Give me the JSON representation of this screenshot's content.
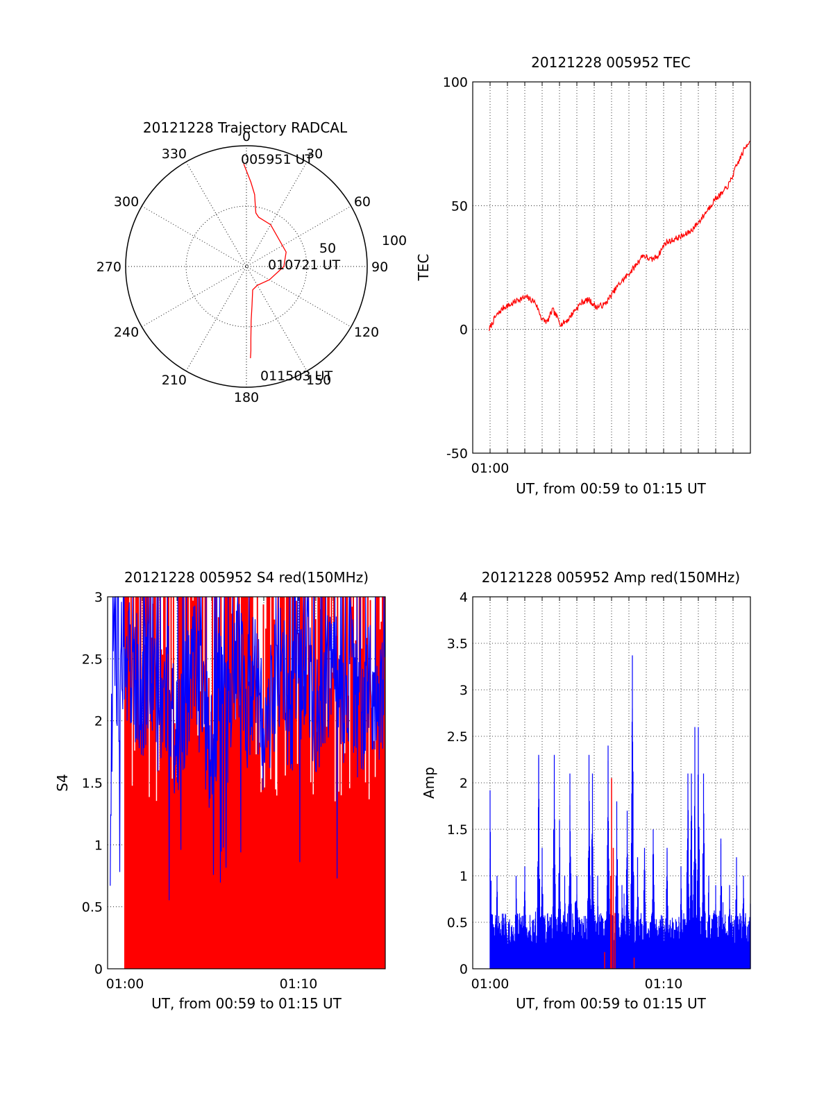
{
  "colors": {
    "red": "#ff0000",
    "blue": "#0000ff",
    "axis": "#000000",
    "grid": "#000000"
  },
  "chart_data": [
    {
      "id": "trajectory",
      "type": "polar",
      "title": "20121228 Trajectory RADCAL",
      "angle_labels": [
        "0",
        "30",
        "60",
        "90",
        "120",
        "150",
        "180",
        "210",
        "240",
        "270",
        "300",
        "330"
      ],
      "radius_labels": [
        "50",
        "100"
      ],
      "rlim": [
        0,
        100
      ],
      "grid": true,
      "series": [
        {
          "color": "#ff0000",
          "points": [
            [
              -1.5,
              85
            ],
            [
              3,
              70
            ],
            [
              6.5,
              60
            ],
            [
              8.5,
              50
            ],
            [
              10,
              45
            ],
            [
              14,
              42
            ],
            [
              30,
              40
            ],
            [
              70,
              35
            ],
            [
              90,
              31
            ],
            [
              120,
              22
            ],
            [
              150,
              18
            ],
            [
              165,
              20
            ],
            [
              172,
              33
            ],
            [
              175,
              45
            ],
            [
              176.5,
              60
            ],
            [
              177,
              70
            ],
            [
              177.5,
              76
            ]
          ]
        }
      ],
      "annotations": [
        "005951 UT",
        "010721 UT",
        "011503 UT"
      ]
    },
    {
      "id": "tec",
      "type": "line",
      "title": "20121228 005952 TEC",
      "xlabel": "UT, from 00:59 to 01:15 UT",
      "ylabel": "TEC",
      "xlim": [
        0,
        16
      ],
      "ylim": [
        -50,
        100
      ],
      "yticks": [
        "-50",
        "0",
        "50",
        "100"
      ],
      "xticks": [
        {
          "x": 1,
          "label": "01:00"
        }
      ],
      "grid": true,
      "series": [
        {
          "color": "#ff0000",
          "x": [
            0.95,
            1.3,
            1.8,
            2.2,
            2.6,
            3.1,
            3.6,
            4.0,
            4.3,
            4.6,
            5.1,
            5.5,
            5.9,
            6.3,
            6.7,
            7.1,
            7.6,
            8.0,
            8.4,
            8.8,
            9.3,
            9.8,
            10.3,
            10.7,
            11.1,
            11.5,
            11.8,
            12.2,
            12.6,
            13.1,
            13.6,
            14.0,
            14.4,
            14.8,
            15.2,
            15.6,
            16.0
          ],
          "y": [
            0,
            5,
            9,
            10,
            12,
            13,
            11,
            4,
            3,
            8,
            2,
            4,
            8,
            11,
            12,
            9,
            10,
            14,
            18,
            21,
            25,
            30,
            28,
            30,
            35,
            36,
            37,
            38,
            40,
            44,
            49,
            53,
            55,
            59,
            66,
            72,
            77
          ]
        }
      ]
    },
    {
      "id": "s4",
      "type": "line",
      "title": "20121228 005952 S4 red(150MHz)",
      "xlabel": "UT, from 00:59 to 01:15 UT",
      "ylabel": "S4",
      "xlim": [
        0,
        16
      ],
      "ylim": [
        0,
        3
      ],
      "yticks": [
        "0",
        "0.5",
        "1",
        "1.5",
        "2",
        "2.5",
        "3"
      ],
      "xticks": [
        {
          "x": 1,
          "label": "01:00"
        },
        {
          "x": 11,
          "label": "01:10"
        }
      ],
      "grid": true,
      "series": [
        {
          "color": "#ff0000",
          "description": "dense oscillation between 0 and 3 from 01:00 to 01:15"
        },
        {
          "color": "#0000ff",
          "x": [
            0.15,
            0.3,
            0.6,
            1.0,
            1.5,
            2.0,
            2.5,
            3.0,
            3.5,
            4.0,
            4.5,
            5.0,
            5.5,
            6.0,
            6.5,
            7.0,
            7.5,
            8.0,
            8.5,
            9.0,
            9.5,
            10.0,
            10.5,
            11.0,
            11.5,
            12.0,
            12.5,
            13.0,
            13.5,
            14.0,
            14.5,
            15.0,
            15.5,
            16.0
          ],
          "y": [
            0.95,
            2.6,
            2.3,
            2.6,
            2.4,
            2.2,
            2.5,
            2.0,
            2.3,
            1.8,
            2.2,
            2.5,
            2.1,
            1.7,
            2.3,
            2.0,
            2.6,
            2.1,
            2.4,
            1.9,
            2.2,
            2.5,
            2.0,
            2.3,
            2.6,
            1.9,
            2.3,
            2.5,
            2.1,
            2.4,
            2.0,
            2.3,
            2.1,
            2.4
          ]
        }
      ]
    },
    {
      "id": "amp",
      "type": "line",
      "title": "20121228 005952 Amp red(150MHz)",
      "xlabel": "UT, from 00:59 to 01:15 UT",
      "ylabel": "Amp",
      "xlim": [
        0,
        16
      ],
      "ylim": [
        0,
        4
      ],
      "yticks": [
        "0",
        "0.5",
        "1",
        "1.5",
        "2",
        "2.5",
        "3",
        "3.5",
        "4"
      ],
      "xticks": [
        {
          "x": 1,
          "label": "01:00"
        },
        {
          "x": 11,
          "label": "01:10"
        }
      ],
      "grid": true,
      "series": [
        {
          "color": "#0000ff",
          "baseline": [
            0.25,
            0.6
          ],
          "peaks": [
            [
              1.0,
              1.92
            ],
            [
              1.4,
              1.0
            ],
            [
              2.5,
              1.0
            ],
            [
              3.0,
              1.1
            ],
            [
              3.8,
              2.3
            ],
            [
              4.0,
              1.3
            ],
            [
              4.7,
              2.3
            ],
            [
              5.0,
              1.6
            ],
            [
              5.3,
              1.0
            ],
            [
              5.6,
              2.1
            ],
            [
              6.0,
              1.0
            ],
            [
              6.7,
              2.3
            ],
            [
              6.9,
              2.1
            ],
            [
              7.2,
              1.0
            ],
            [
              7.8,
              2.4
            ],
            [
              8.3,
              1.8
            ],
            [
              8.6,
              0.9
            ],
            [
              8.9,
              1.7
            ],
            [
              9.2,
              3.37
            ],
            [
              9.5,
              1.2
            ],
            [
              9.9,
              1.3
            ],
            [
              10.4,
              1.5
            ],
            [
              11.2,
              1.3
            ],
            [
              12.0,
              1.1
            ],
            [
              12.4,
              2.1
            ],
            [
              12.6,
              2.1
            ],
            [
              12.8,
              2.6
            ],
            [
              13.0,
              2.6
            ],
            [
              13.3,
              2.1
            ],
            [
              13.6,
              1.0
            ],
            [
              14.0,
              0.9
            ],
            [
              14.3,
              1.4
            ],
            [
              14.8,
              0.9
            ],
            [
              15.2,
              1.2
            ],
            [
              15.6,
              1.0
            ],
            [
              16.0,
              0.7
            ]
          ]
        },
        {
          "color": "#ff0000",
          "peaks": [
            [
              7.6,
              0.18
            ],
            [
              7.95,
              1.0
            ],
            [
              8.0,
              2.05
            ],
            [
              8.1,
              1.3
            ],
            [
              8.2,
              0.6
            ],
            [
              9.3,
              0.12
            ]
          ]
        }
      ]
    }
  ]
}
